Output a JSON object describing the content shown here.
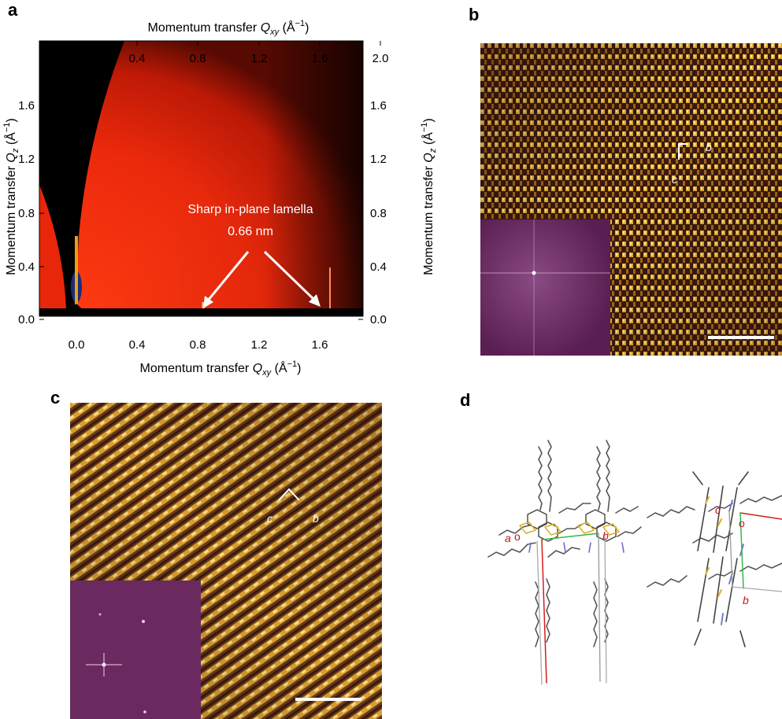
{
  "figure": {
    "panel_labels": {
      "a": "a",
      "b": "b",
      "c": "c",
      "d": "d"
    }
  },
  "panel_a": {
    "top_axis_label_main": "Momentum transfer ",
    "top_axis_label_var": "Q",
    "top_axis_label_sub": "xy",
    "top_axis_label_unit": " (Å",
    "top_axis_label_exp": "−1",
    "top_axis_label_close": ")",
    "bottom_axis_label_main": "Momentum transfer ",
    "bottom_axis_label_var": "Q",
    "bottom_axis_label_sub": "xy",
    "bottom_axis_label_unit": " (Å",
    "bottom_axis_label_exp": "−1",
    "bottom_axis_label_close": ")",
    "left_axis_label_main": "Momentum transfer ",
    "left_axis_label_var": "Q",
    "left_axis_label_sub": "z",
    "left_axis_label_unit": " (Å",
    "left_axis_label_exp": "−1",
    "left_axis_label_close": ")",
    "right_axis_label_main": "Momentum transfer ",
    "right_axis_label_var": "Q",
    "right_axis_label_sub": "z",
    "right_axis_label_unit": " (Å",
    "right_axis_label_exp": "−1",
    "right_axis_label_close": ")",
    "x_ticks": [
      "0.0",
      "0.4",
      "0.8",
      "1.2",
      "1.6",
      "2.0"
    ],
    "y_ticks": [
      "0.0",
      "0.4",
      "0.8",
      "1.2",
      "1.6"
    ],
    "annotation_line1": "Sharp in-plane lamella",
    "annotation_line2": "0.66 nm",
    "colors": {
      "background": "#000000",
      "signal": "#e8260a",
      "beamstop": "#1a2c80"
    }
  },
  "panel_b": {
    "axis_b": "b",
    "axis_c": "c",
    "colors": {
      "image": "#c8881c",
      "inset": "#6a2a60",
      "scalebar": "#ffffff"
    }
  },
  "panel_c": {
    "axis_b": "b",
    "axis_c": "c",
    "colors": {
      "image": "#c08020",
      "inset": "#6a2a60",
      "scalebar": "#ffffff"
    }
  },
  "panel_d": {
    "left_labels": {
      "a": "a",
      "o": "o",
      "b": "b"
    },
    "right_labels": {
      "c": "c",
      "o": "o",
      "b": "b"
    },
    "colors": {
      "axis_red": "#d21e1e",
      "axis_green": "#39b54a",
      "label_red": "#c2161d",
      "bond_gray": "#555555",
      "ring_yellow": "#e0b020",
      "n_blue": "#6a70c8"
    }
  }
}
